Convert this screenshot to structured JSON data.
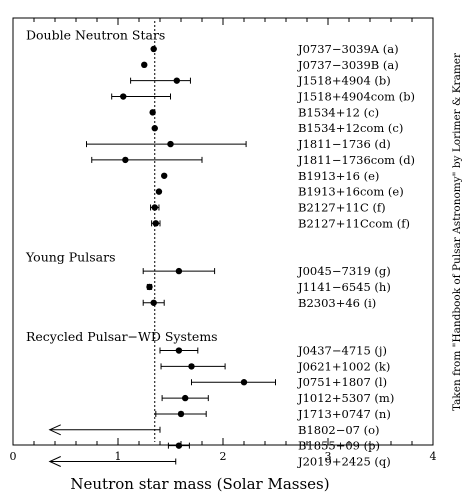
{
  "chart_data": {
    "type": "scatter",
    "xlabel": "Neutron star mass (Solar Masses)",
    "xlim": [
      0,
      4
    ],
    "xticks": [
      "0",
      "1",
      "2",
      "3",
      "4"
    ],
    "reference_line_x": 1.35,
    "credit": "Taken from \"Handbook of Pulsar Astronomy\" by Lorimer & Kramer",
    "sections": [
      {
        "title": "Double Neutron Stars",
        "points": [
          {
            "label": "J0737−3039A (a)",
            "mass": 1.34,
            "err_low": 0.01,
            "err_high": 0.01
          },
          {
            "label": "J0737−3039B (a)",
            "mass": 1.25,
            "err_low": 0.01,
            "err_high": 0.01
          },
          {
            "label": "J1518+4904 (b)",
            "mass": 1.56,
            "err_low": 0.44,
            "err_high": 0.13
          },
          {
            "label": "J1518+4904com (b)",
            "mass": 1.05,
            "err_low": 0.11,
            "err_high": 0.45
          },
          {
            "label": "B1534+12 (c)",
            "mass": 1.33,
            "err_low": 0.01,
            "err_high": 0.01
          },
          {
            "label": "B1534+12com (c)",
            "mass": 1.35,
            "err_low": 0.01,
            "err_high": 0.01
          },
          {
            "label": "J1811−1736 (d)",
            "mass": 1.5,
            "err_low": 0.8,
            "err_high": 0.72
          },
          {
            "label": "J1811−1736com (d)",
            "mass": 1.07,
            "err_low": 0.32,
            "err_high": 0.73
          },
          {
            "label": "B1913+16 (e)",
            "mass": 1.44,
            "err_low": 0.01,
            "err_high": 0.01
          },
          {
            "label": "B1913+16com (e)",
            "mass": 1.39,
            "err_low": 0.01,
            "err_high": 0.01
          },
          {
            "label": "B2127+11C (f)",
            "mass": 1.35,
            "err_low": 0.04,
            "err_high": 0.04
          },
          {
            "label": "B2127+11Ccom (f)",
            "mass": 1.36,
            "err_low": 0.04,
            "err_high": 0.04
          }
        ]
      },
      {
        "title": "Young Pulsars",
        "points": [
          {
            "label": "J0045−7319 (g)",
            "mass": 1.58,
            "err_low": 0.34,
            "err_high": 0.34
          },
          {
            "label": "J1141−6545 (h)",
            "mass": 1.3,
            "err_low": 0.02,
            "err_high": 0.02
          },
          {
            "label": "B2303+46 (i)",
            "mass": 1.34,
            "err_low": 0.1,
            "err_high": 0.1
          }
        ]
      },
      {
        "title": "Recycled Pulsar−WD Systems",
        "points": [
          {
            "label": "J0437−4715 (j)",
            "mass": 1.58,
            "err_low": 0.18,
            "err_high": 0.18
          },
          {
            "label": "J0621+1002 (k)",
            "mass": 1.7,
            "err_low": 0.29,
            "err_high": 0.32
          },
          {
            "label": "J0751+1807 (l)",
            "mass": 2.2,
            "err_low": 0.5,
            "err_high": 0.3
          },
          {
            "label": "J1012+5307 (m)",
            "mass": 1.64,
            "err_low": 0.22,
            "err_high": 0.22
          },
          {
            "label": "J1713+0747 (n)",
            "mass": 1.6,
            "err_low": 0.24,
            "err_high": 0.24
          },
          {
            "label": "B1802−07 (o)",
            "mass": null,
            "upper_limit": 1.4
          },
          {
            "label": "B1855+09 (p)",
            "mass": 1.58,
            "err_low": 0.1,
            "err_high": 0.1
          },
          {
            "label": "J2019+2425 (q)",
            "mass": null,
            "upper_limit": 1.55
          }
        ]
      }
    ]
  }
}
